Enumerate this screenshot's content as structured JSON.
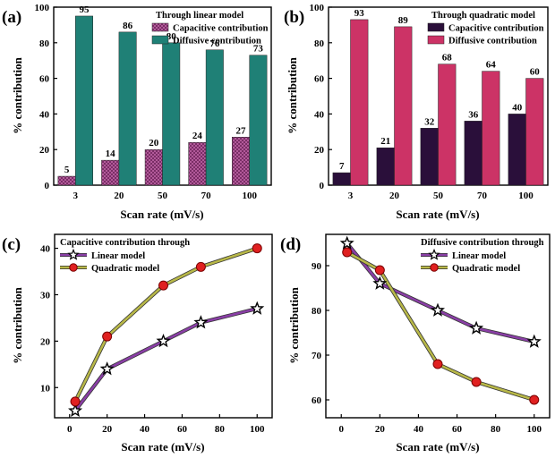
{
  "colors": {
    "capacitive_linear": "#7a2e66",
    "diffusive_linear": "#1f8076",
    "capacitive_quadratic": "#2a0f3a",
    "diffusive_quadratic": "#cc3366",
    "linear_line": "#8a3fa6",
    "quadratic_line": "#b8b848",
    "marker_red": "#e02020"
  },
  "chart_data": [
    {
      "id": "a",
      "type": "bar",
      "panel_label": "(a)",
      "annotation_title": "Through linear model",
      "categories": [
        "3",
        "20",
        "50",
        "70",
        "100"
      ],
      "series": [
        {
          "name": "Capacitive contribution",
          "values": [
            5,
            14,
            20,
            24,
            27
          ],
          "labels": [
            "5",
            "14",
            "20",
            "24",
            "27"
          ]
        },
        {
          "name": "Diffusive contribution",
          "values": [
            95,
            86,
            80,
            76,
            73
          ],
          "labels": [
            "95",
            "86",
            "80",
            "76",
            "73"
          ]
        }
      ],
      "xlabel": "Scan rate (mV/s)",
      "ylabel": "% contribution",
      "ylim": [
        0,
        100
      ],
      "yticks": [
        0,
        20,
        40,
        60,
        80,
        100
      ],
      "ytick_labels": [
        "0",
        "20",
        "40",
        "60",
        "80",
        "100"
      ],
      "legend_position": "top-right"
    },
    {
      "id": "b",
      "type": "bar",
      "panel_label": "(b)",
      "annotation_title": "Through quadratic model",
      "categories": [
        "3",
        "20",
        "50",
        "70",
        "100"
      ],
      "series": [
        {
          "name": "Capacitive contribution",
          "values": [
            7,
            21,
            32,
            36,
            40
          ],
          "labels": [
            "7",
            "21",
            "32",
            "36",
            "40"
          ]
        },
        {
          "name": "Diffusive contribution",
          "values": [
            93,
            89,
            68,
            64,
            60
          ],
          "labels": [
            "93",
            "89",
            "68",
            "64",
            "60"
          ]
        }
      ],
      "xlabel": "Scan rate (mV/s)",
      "ylabel": "% contribution",
      "ylim": [
        0,
        100
      ],
      "yticks": [
        0,
        20,
        40,
        60,
        80,
        100
      ],
      "ytick_labels": [
        "0",
        "20",
        "40",
        "60",
        "80",
        "100"
      ],
      "legend_position": "top-right"
    },
    {
      "id": "c",
      "type": "line",
      "panel_label": "(c)",
      "annotation_title": "Capacitive contribution through",
      "x": [
        3,
        20,
        50,
        70,
        100
      ],
      "series": [
        {
          "name": "Linear model",
          "marker": "star",
          "values": [
            5,
            14,
            20,
            24,
            27
          ]
        },
        {
          "name": "Quadratic model",
          "marker": "circle",
          "values": [
            7,
            21,
            32,
            36,
            40
          ]
        }
      ],
      "xlabel": "Scan rate (mV/s)",
      "ylabel": "% contribution",
      "xlim": [
        -8,
        108
      ],
      "ylim": [
        3.5,
        43
      ],
      "xticks": [
        0,
        20,
        40,
        60,
        80,
        100
      ],
      "xtick_labels": [
        "0",
        "20",
        "40",
        "60",
        "80",
        "100"
      ],
      "yticks": [
        10,
        20,
        30,
        40
      ],
      "ytick_labels": [
        "10",
        "20",
        "30",
        "40"
      ],
      "legend_position": "top-left"
    },
    {
      "id": "d",
      "type": "line",
      "panel_label": "(d)",
      "annotation_title": "Diffusive contribution through",
      "x": [
        3,
        20,
        50,
        70,
        100
      ],
      "series": [
        {
          "name": "Linear model",
          "marker": "star",
          "values": [
            95,
            86,
            80,
            76,
            73
          ]
        },
        {
          "name": "Quadratic model",
          "marker": "circle",
          "values": [
            93,
            89,
            68,
            64,
            60
          ]
        }
      ],
      "xlabel": "Scan rate (mV/s)",
      "ylabel": "% contribution",
      "xlim": [
        -8,
        108
      ],
      "ylim": [
        56,
        97
      ],
      "xticks": [
        0,
        20,
        40,
        60,
        80,
        100
      ],
      "xtick_labels": [
        "0",
        "20",
        "40",
        "60",
        "80",
        "100"
      ],
      "yticks": [
        60,
        70,
        80,
        90
      ],
      "ytick_labels": [
        "60",
        "70",
        "80",
        "90"
      ],
      "legend_position": "top-right"
    }
  ]
}
